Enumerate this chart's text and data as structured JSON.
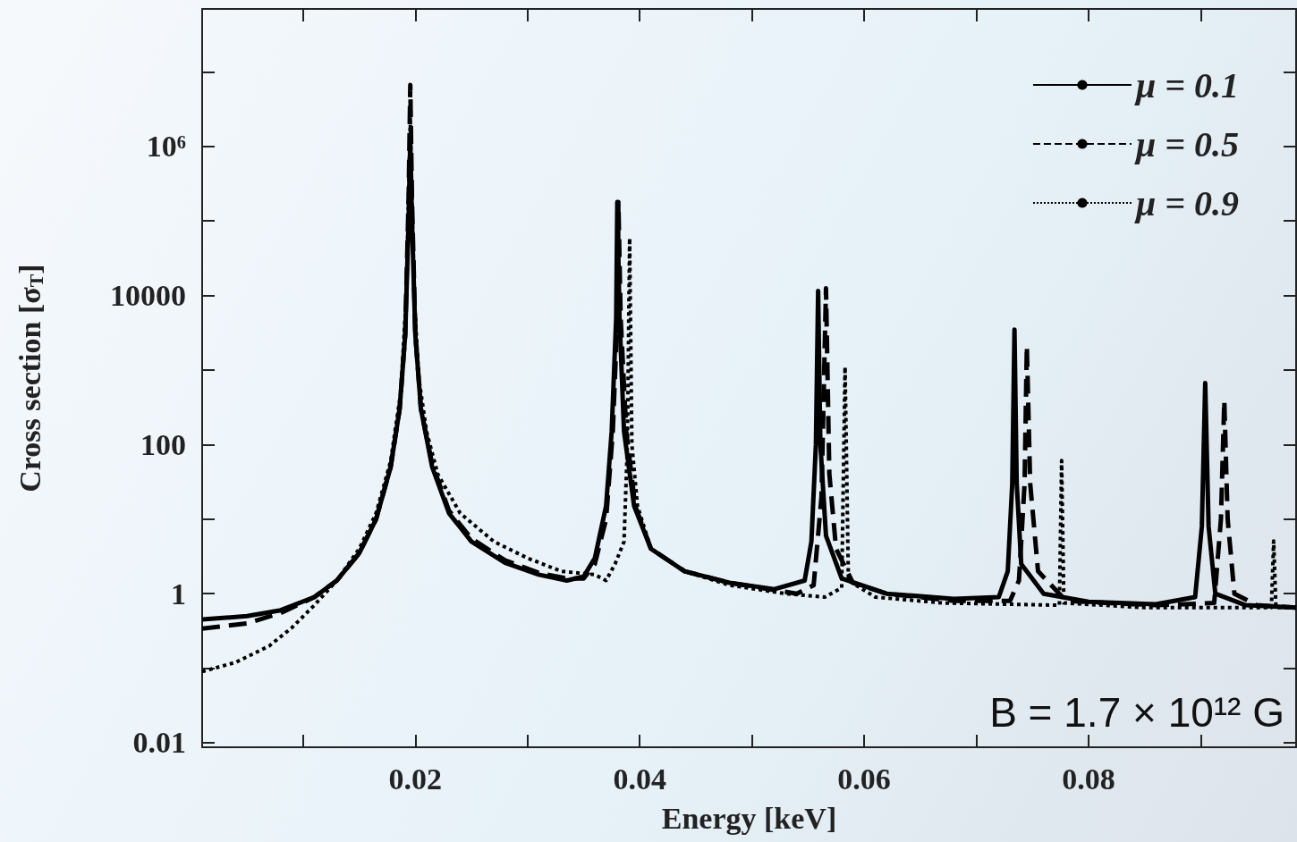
{
  "chart_data": {
    "type": "line",
    "xlabel": "Energy [keV]",
    "ylabel": "Cross section [σ$_{T}$]",
    "annotations": [
      "B = 1.7 × 10¹² G"
    ],
    "log": "y",
    "grid": false,
    "legend": "top right",
    "marker": "none",
    "xlim": [
      0.001,
      0.0985
    ],
    "ylim": [
      0.0087,
      70000000
    ],
    "xticks": [
      {
        "value": 0.01,
        "label": null
      },
      0.02,
      {
        "value": 0.03,
        "label": null
      },
      0.04,
      {
        "value": 0.05,
        "label": null
      },
      0.06,
      {
        "value": 0.07,
        "label": null
      },
      0.08,
      {
        "value": 0.09,
        "label": null
      }
    ],
    "yticks": [
      0.01,
      {
        "value": 0.1,
        "label": null
      },
      1,
      {
        "value": 10,
        "label": null
      },
      100,
      {
        "value": 1000,
        "label": null
      },
      10000,
      {
        "value": 100000,
        "label": null
      },
      {
        "value": 1000000,
        "label": "10⁶"
      },
      {
        "value": 10000000,
        "label": null
      }
    ],
    "series": [
      {
        "name": "μ = 0.1",
        "color": "#000000",
        "line_style": "solid",
        "x": [
          0.001,
          0.005,
          0.008,
          0.011,
          0.013,
          0.015,
          0.0165,
          0.0178,
          0.0186,
          0.0191,
          0.0194,
          0.01955,
          0.0197,
          0.02,
          0.0205,
          0.0215,
          0.023,
          0.025,
          0.028,
          0.031,
          0.0335,
          0.035,
          0.036,
          0.037,
          0.0375,
          0.0379,
          0.038,
          0.0382,
          0.0386,
          0.0395,
          0.041,
          0.044,
          0.048,
          0.052,
          0.0547,
          0.0553,
          0.0557,
          0.0559,
          0.0561,
          0.0566,
          0.058,
          0.062,
          0.068,
          0.072,
          0.0728,
          0.0732,
          0.0734,
          0.0736,
          0.074,
          0.076,
          0.08,
          0.086,
          0.0895,
          0.0901,
          0.0904,
          0.0907,
          0.0913,
          0.094,
          0.0985
        ],
        "values": [
          0.45,
          0.5,
          0.6,
          0.9,
          1.5,
          3.5,
          10,
          50,
          300,
          3000,
          100000,
          1200000,
          100000,
          3000,
          300,
          50,
          12,
          5,
          2.6,
          1.8,
          1.5,
          1.7,
          3,
          15,
          150,
          5000,
          180000,
          5000,
          150,
          15,
          4,
          2,
          1.4,
          1.15,
          1.5,
          5,
          100,
          11500,
          100,
          6,
          1.6,
          1,
          0.85,
          0.9,
          2,
          30,
          3500,
          30,
          2.5,
          1,
          0.78,
          0.72,
          0.9,
          8,
          670,
          8,
          1,
          0.7,
          0.65
        ]
      },
      {
        "name": "μ = 0.5",
        "color": "#000000",
        "line_style": "dashed",
        "x": [
          0.001,
          0.005,
          0.008,
          0.011,
          0.013,
          0.015,
          0.0165,
          0.0178,
          0.0186,
          0.0191,
          0.0194,
          0.01955,
          0.0197,
          0.02,
          0.0205,
          0.0215,
          0.023,
          0.025,
          0.028,
          0.031,
          0.0335,
          0.035,
          0.036,
          0.037,
          0.0376,
          0.038,
          0.0381,
          0.0383,
          0.0388,
          0.0396,
          0.041,
          0.044,
          0.048,
          0.054,
          0.0555,
          0.0562,
          0.0566,
          0.0569,
          0.0575,
          0.059,
          0.062,
          0.068,
          0.073,
          0.0738,
          0.0743,
          0.0745,
          0.0748,
          0.0755,
          0.078,
          0.086,
          0.0912,
          0.0918,
          0.0921,
          0.0924,
          0.093,
          0.095,
          0.0985
        ],
        "values": [
          0.34,
          0.4,
          0.55,
          0.9,
          1.5,
          3.5,
          10,
          50,
          300,
          3000,
          200000,
          6700000,
          200000,
          3000,
          300,
          55,
          13,
          5.5,
          2.8,
          1.9,
          1.6,
          1.6,
          2.5,
          10,
          150,
          5000,
          180000,
          5000,
          150,
          15,
          4,
          2,
          1.4,
          1,
          1.3,
          20,
          12500,
          40,
          4,
          1.4,
          1,
          0.8,
          0.8,
          1.5,
          30,
          2100,
          30,
          2,
          0.8,
          0.7,
          0.75,
          10,
          390,
          10,
          1,
          0.7,
          0.65
        ]
      },
      {
        "name": "μ = 0.9",
        "color": "#000000",
        "line_style": "dotted",
        "x": [
          0.001,
          0.004,
          0.007,
          0.009,
          0.011,
          0.013,
          0.015,
          0.0165,
          0.0178,
          0.0187,
          0.0192,
          0.01955,
          0.0199,
          0.0203,
          0.021,
          0.022,
          0.024,
          0.027,
          0.03,
          0.033,
          0.036,
          0.037,
          0.0378,
          0.0386,
          0.0389,
          0.0391,
          0.0393,
          0.0398,
          0.041,
          0.044,
          0.048,
          0.053,
          0.0565,
          0.058,
          0.0583,
          0.0586,
          0.061,
          0.067,
          0.0774,
          0.0776,
          0.0778,
          0.085,
          0.0963,
          0.0965,
          0.0967,
          0.0985
        ],
        "values": [
          0.09,
          0.12,
          0.2,
          0.35,
          0.7,
          1.5,
          4,
          12,
          60,
          500,
          10000,
          2200000,
          10000,
          800,
          150,
          40,
          12,
          5,
          3,
          2,
          1.8,
          1.5,
          2.5,
          5,
          100,
          59000,
          100,
          15,
          4,
          2,
          1.3,
          1,
          0.9,
          1.2,
          1100,
          1.5,
          0.9,
          0.75,
          0.7,
          61,
          0.75,
          0.65,
          0.65,
          5.1,
          0.65,
          0.65
        ]
      }
    ]
  }
}
